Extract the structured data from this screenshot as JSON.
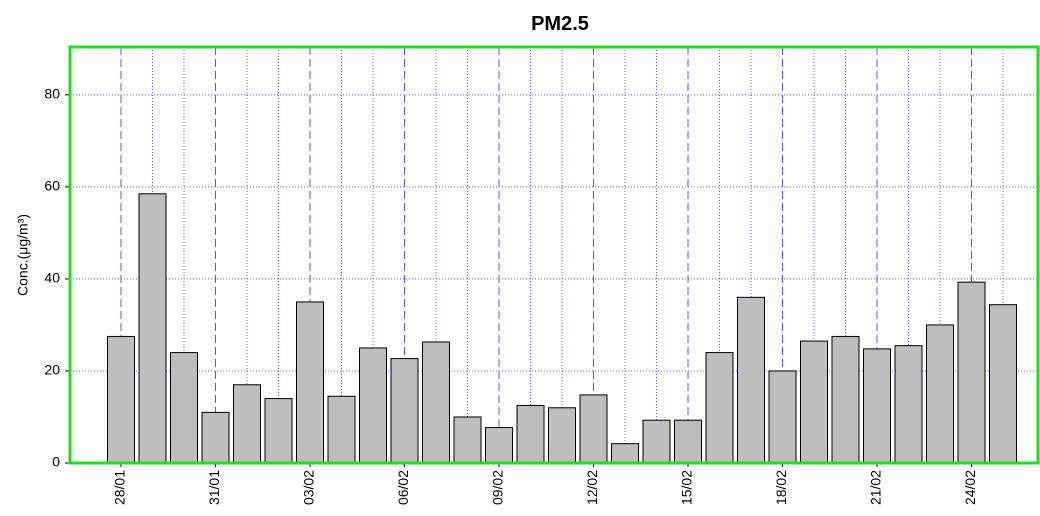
{
  "chart_data": {
    "type": "bar",
    "title": "PM2.5",
    "ylabel": "Conc.(μg/m³)",
    "categories": [
      "28/01",
      null,
      null,
      "31/01",
      null,
      null,
      "03/02",
      null,
      null,
      "06/02",
      null,
      null,
      "09/02",
      null,
      null,
      "12/02",
      null,
      null,
      "15/02",
      null,
      null,
      "18/02",
      null,
      null,
      "21/02",
      null,
      null,
      "24/02",
      null
    ],
    "values": [
      27.5,
      58.5,
      24,
      11,
      17,
      14,
      35,
      14.5,
      25,
      22.7,
      26.3,
      10,
      7.7,
      12.5,
      12,
      14.8,
      4.2,
      9.3,
      9.3,
      24,
      36,
      20,
      26.5,
      27.5,
      24.8,
      25.5,
      30,
      39.3,
      34.4
    ],
    "color": "#bebebe",
    "ylim": [
      0,
      90.4
    ],
    "yticks": [
      0,
      20,
      40,
      60,
      80
    ],
    "grid": true
  }
}
